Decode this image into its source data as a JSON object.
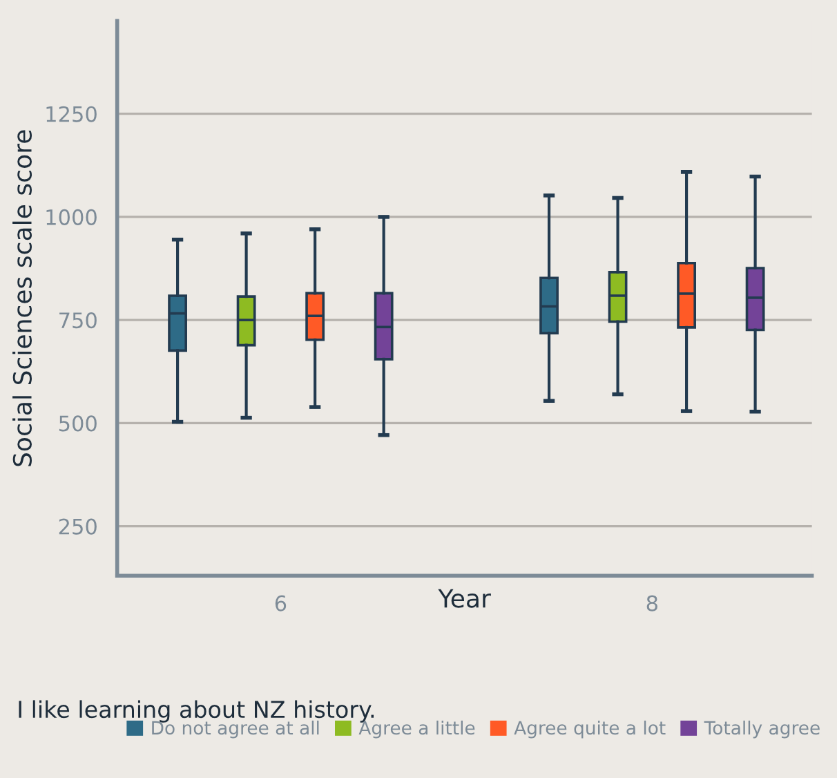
{
  "chart_data": {
    "type": "box",
    "xlabel": "Year",
    "ylabel": "Social Sciences scale score",
    "legend_title": "I like learning about NZ history.",
    "categories": [
      "6",
      "8"
    ],
    "ylim": [
      130,
      1475
    ],
    "yticks": [
      250,
      500,
      750,
      1000,
      1250
    ],
    "grid": "y",
    "legend": "bottom",
    "series": [
      {
        "name": "Do not agree at all",
        "color": "#2e6b87",
        "boxes": [
          {
            "low": 503,
            "q1": 676,
            "median": 766,
            "q3": 809,
            "high": 945
          },
          {
            "low": 554,
            "q1": 718,
            "median": 783,
            "q3": 852,
            "high": 1052
          }
        ]
      },
      {
        "name": "Agree a little",
        "color": "#8ebb22",
        "boxes": [
          {
            "low": 513,
            "q1": 689,
            "median": 750,
            "q3": 807,
            "high": 960
          },
          {
            "low": 570,
            "q1": 746,
            "median": 809,
            "q3": 866,
            "high": 1046
          }
        ]
      },
      {
        "name": "Agree quite a lot",
        "color": "#ff5a26",
        "boxes": [
          {
            "low": 539,
            "q1": 702,
            "median": 760,
            "q3": 815,
            "high": 970
          },
          {
            "low": 529,
            "q1": 732,
            "median": 814,
            "q3": 888,
            "high": 1109
          }
        ]
      },
      {
        "name": "Totally agree",
        "color": "#734398",
        "boxes": [
          {
            "low": 471,
            "q1": 655,
            "median": 733,
            "q3": 815,
            "high": 1000
          },
          {
            "low": 528,
            "q1": 726,
            "median": 804,
            "q3": 876,
            "high": 1098
          }
        ]
      }
    ]
  }
}
